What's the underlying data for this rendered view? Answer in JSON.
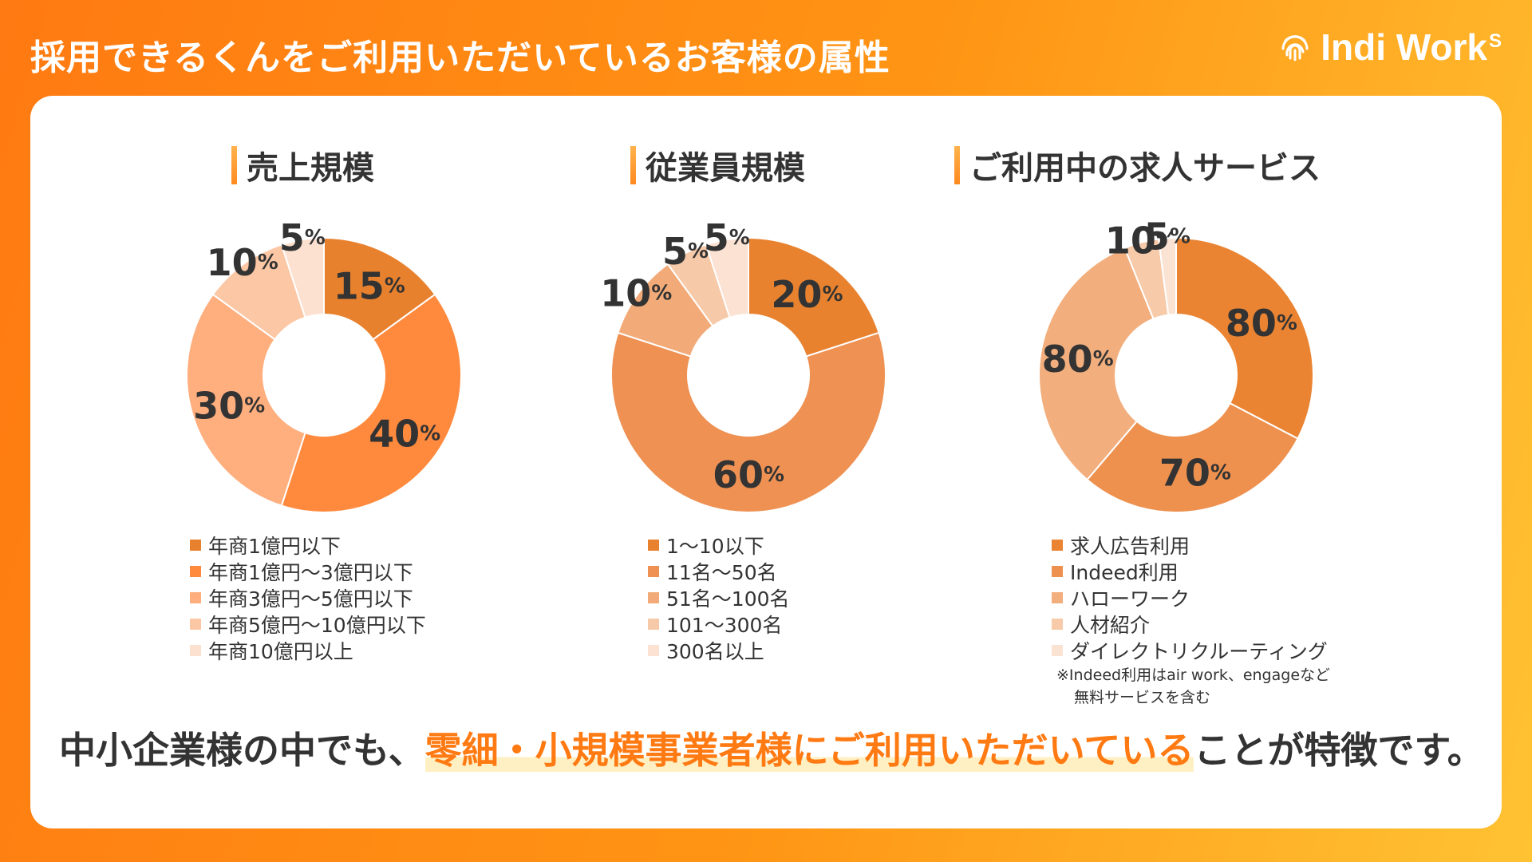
{
  "header": {
    "title": "採用できるくんをご利用いただいているお客様の属性",
    "logo_text": "Indi Work",
    "logo_sup": "S"
  },
  "sections": [
    {
      "title": "売上規模"
    },
    {
      "title": "従業員規模"
    },
    {
      "title": "ご利用中の求人サービス"
    }
  ],
  "chart_data": [
    {
      "type": "pie",
      "title": "売上規模",
      "donut": true,
      "categories": [
        "年商1億円以下",
        "年商1億円～3億円以下",
        "年商3億円～5億円以下",
        "年商5億円～10億円以下",
        "年商10億円以上"
      ],
      "values": [
        15,
        40,
        30,
        10,
        5
      ],
      "labels": [
        "15",
        "40",
        "30",
        "10",
        "5"
      ],
      "unit": "%",
      "colors": [
        "#e8812e",
        "#ff8a3d",
        "#ffae7e",
        "#fcc7a4",
        "#fde1d0"
      ],
      "legend": "bottom"
    },
    {
      "type": "pie",
      "title": "従業員規模",
      "donut": true,
      "categories": [
        "1～10以下",
        "11名～50名",
        "51名～100名",
        "101～300名",
        "300名以上"
      ],
      "values": [
        20,
        60,
        10,
        5,
        5
      ],
      "labels": [
        "20",
        "60",
        "10",
        "5",
        "5"
      ],
      "unit": "%",
      "colors": [
        "#e8822f",
        "#ee9153",
        "#f2ab78",
        "#f6c9a8",
        "#fbe2d2"
      ],
      "legend": "bottom"
    },
    {
      "type": "pie",
      "title": "ご利用中の求人サービス",
      "donut": true,
      "categories": [
        "求人広告利用",
        "Indeed利用",
        "ハローワーク",
        "人材紹介",
        "ダイレクトリクルーティング"
      ],
      "values": [
        80,
        70,
        80,
        10,
        5
      ],
      "labels": [
        "80",
        "70",
        "80",
        "10",
        "5"
      ],
      "unit": "%",
      "colors": [
        "#ea8432",
        "#ee914f",
        "#f2ae7d",
        "#f7caa9",
        "#fae3d3"
      ],
      "legend": "bottom"
    }
  ],
  "note": {
    "line1": "※Indeed利用はair work、engageなど",
    "line2": "無料サービスを含む"
  },
  "message": {
    "before": "中小企業様の中でも、",
    "highlight": "零細・小規模事業者様にご利用いただいている",
    "after": "ことが特徴です。",
    "highlight_color": "#ff7a12"
  }
}
